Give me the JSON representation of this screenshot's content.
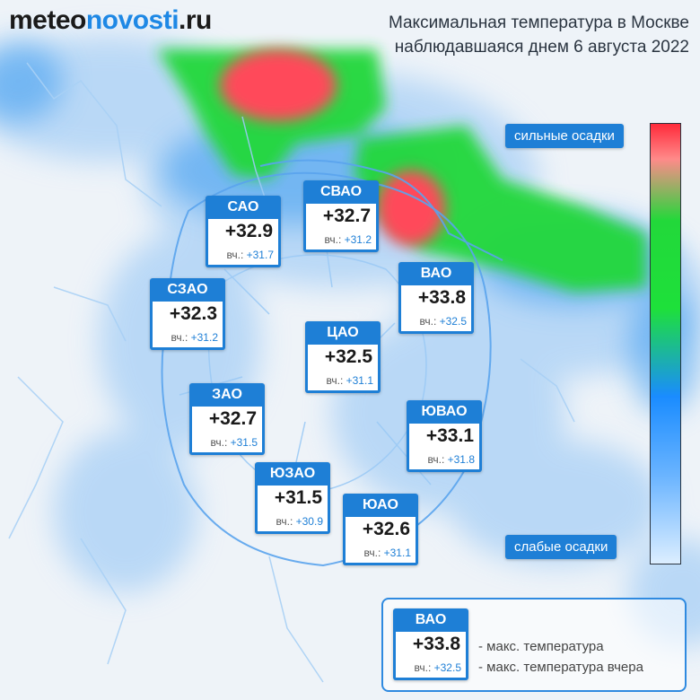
{
  "brand": {
    "part1": "meteo",
    "part2": "novosti",
    "part3": ".ru"
  },
  "title": {
    "line1": "Максимальная температура в Москве",
    "line2": "наблюдавшаяся днем 6 августа 2022"
  },
  "prev_prefix": "вч.:",
  "districts": [
    {
      "name": "САО",
      "temp": "+32.9",
      "prev": "+31.7"
    },
    {
      "name": "СВАО",
      "temp": "+32.7",
      "prev": "+31.2"
    },
    {
      "name": "СЗАО",
      "temp": "+32.3",
      "prev": "+31.2"
    },
    {
      "name": "ВАО",
      "temp": "+33.8",
      "prev": "+32.5"
    },
    {
      "name": "ЦАО",
      "temp": "+32.5",
      "prev": "+31.1"
    },
    {
      "name": "ЗАО",
      "temp": "+32.7",
      "prev": "+31.5"
    },
    {
      "name": "ЮВАО",
      "temp": "+33.1",
      "prev": "+31.8"
    },
    {
      "name": "ЮЗАО",
      "temp": "+31.5",
      "prev": "+30.9"
    },
    {
      "name": "ЮАО",
      "temp": "+32.6",
      "prev": "+31.1"
    }
  ],
  "scale": {
    "top_label": "сильные осадки",
    "bottom_label": "слабые осадки"
  },
  "legend": {
    "sample": {
      "name": "ВАО",
      "temp": "+33.8",
      "prev": "+32.5"
    },
    "temp_desc": "- макс. температура",
    "prev_desc": "- макс. температура вчера"
  },
  "colors": {
    "card_blue": "#1e7fd6",
    "heavy_precip": "#ff2a3a",
    "medium_precip": "#22d83a",
    "light_precip": "#1a8cff"
  }
}
